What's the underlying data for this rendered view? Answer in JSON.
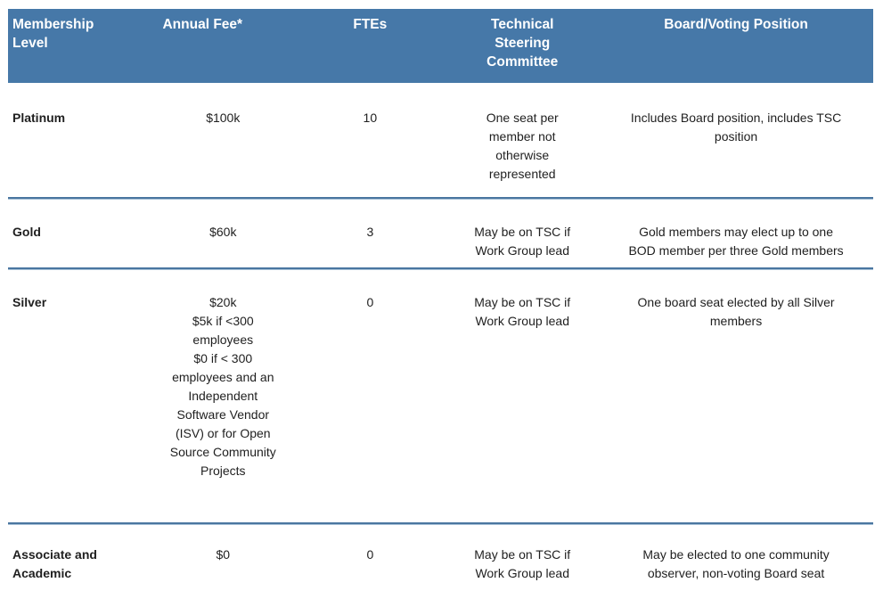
{
  "table": {
    "columns": {
      "level": "Membership\nLevel",
      "fee": "Annual Fee*",
      "ftes": "FTEs",
      "tsc": "Technical\nSteering\nCommittee",
      "board": "Board/Voting Position"
    },
    "rows": [
      {
        "level": "Platinum",
        "fee": "$100k",
        "ftes": "10",
        "tsc": "One seat per member not otherwise represented",
        "board": "Includes Board position, includes TSC position"
      },
      {
        "level": "Gold",
        "fee": "$60k",
        "ftes": "3",
        "tsc": "May be on TSC if Work Group lead",
        "board": "Gold members may elect up to one BOD member per three Gold members"
      },
      {
        "level": "Silver",
        "fee": "$20k\n$5k if <300 employees\n$0 if < 300 employees and an Independent Software Vendor (ISV) or for Open Source Community Projects",
        "ftes": "0",
        "tsc": "May be on TSC if Work Group lead",
        "board": "One board seat elected by all Silver members"
      },
      {
        "level": "Associate and Academic",
        "fee": "$0",
        "ftes": "0",
        "tsc": "May be on TSC if Work Group lead",
        "board": "May be elected to one community observer, non-voting Board seat"
      }
    ],
    "colors": {
      "header_bg": "#4678a8",
      "header_text": "#ffffff",
      "divider_dark": "#4a76a0",
      "divider_light": "#a9c2d8",
      "body_text": "#1f1f1f"
    }
  }
}
